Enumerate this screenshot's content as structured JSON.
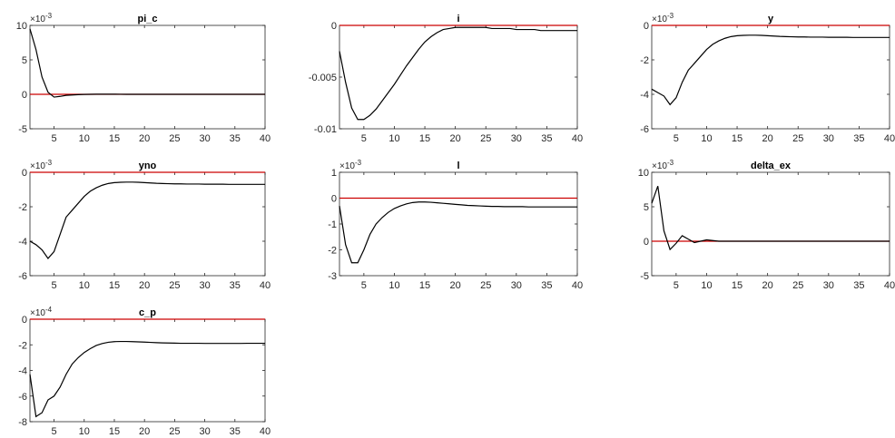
{
  "colors": {
    "response": "#000000",
    "zero_line": "#cc0000",
    "axes": "#262626"
  },
  "chart_data": [
    {
      "type": "line",
      "title": "pi_c",
      "exponent_base": "×10",
      "exponent_power": "-3",
      "x": [
        1,
        2,
        3,
        4,
        5,
        6,
        7,
        8,
        9,
        10,
        11,
        12,
        13,
        14,
        15,
        16,
        17,
        18,
        19,
        20,
        21,
        22,
        23,
        24,
        25,
        26,
        27,
        28,
        29,
        30,
        31,
        32,
        33,
        34,
        35,
        36,
        37,
        38,
        39,
        40
      ],
      "values": [
        9.5,
        6.5,
        2.5,
        0.3,
        -0.4,
        -0.3,
        -0.15,
        -0.1,
        -0.05,
        -0.02,
        0,
        0.02,
        0.02,
        0.02,
        0.02,
        0.01,
        0,
        0,
        0,
        0,
        0,
        0,
        0,
        0,
        0,
        0,
        0,
        0,
        0,
        0,
        0,
        0,
        0,
        0,
        0,
        0,
        0,
        0,
        0,
        0
      ],
      "xlim": [
        1,
        40
      ],
      "ylim": [
        -5,
        10
      ],
      "xticks": [
        5,
        10,
        15,
        20,
        25,
        30,
        35,
        40
      ],
      "xtick_labels": [
        "5",
        "10",
        "15",
        "20",
        "25",
        "30",
        "35",
        "40"
      ],
      "yticks": [
        -5,
        0,
        5,
        10
      ],
      "ytick_labels": [
        "-5",
        "0",
        "5",
        "10"
      ]
    },
    {
      "type": "line",
      "title": "i",
      "exponent_base": "",
      "exponent_power": "",
      "x": [
        1,
        2,
        3,
        4,
        5,
        6,
        7,
        8,
        9,
        10,
        11,
        12,
        13,
        14,
        15,
        16,
        17,
        18,
        19,
        20,
        21,
        22,
        23,
        24,
        25,
        26,
        27,
        28,
        29,
        30,
        31,
        32,
        33,
        34,
        35,
        36,
        37,
        38,
        39,
        40
      ],
      "values": [
        -0.0025,
        -0.0055,
        -0.008,
        -0.0091,
        -0.0091,
        -0.0087,
        -0.0081,
        -0.0073,
        -0.0065,
        -0.0057,
        -0.0048,
        -0.0039,
        -0.0031,
        -0.0023,
        -0.0016,
        -0.0011,
        -0.0007,
        -0.0004,
        -0.0003,
        -0.0002,
        -0.0002,
        -0.0002,
        -0.0002,
        -0.0002,
        -0.0002,
        -0.0003,
        -0.0003,
        -0.0003,
        -0.0003,
        -0.0004,
        -0.0004,
        -0.0004,
        -0.0004,
        -0.0005,
        -0.0005,
        -0.0005,
        -0.0005,
        -0.0005,
        -0.0005,
        -0.0005
      ],
      "xlim": [
        1,
        40
      ],
      "ylim": [
        -0.01,
        0
      ],
      "xticks": [
        5,
        10,
        15,
        20,
        25,
        30,
        35,
        40
      ],
      "xtick_labels": [
        "5",
        "10",
        "15",
        "20",
        "25",
        "30",
        "35",
        "40"
      ],
      "yticks": [
        -0.01,
        -0.005,
        0
      ],
      "ytick_labels": [
        "-0.01",
        "-0.005",
        "0"
      ]
    },
    {
      "type": "line",
      "title": "y",
      "exponent_base": "×10",
      "exponent_power": "-3",
      "x": [
        1,
        2,
        3,
        4,
        5,
        6,
        7,
        8,
        9,
        10,
        11,
        12,
        13,
        14,
        15,
        16,
        17,
        18,
        19,
        20,
        21,
        22,
        23,
        24,
        25,
        26,
        27,
        28,
        29,
        30,
        31,
        32,
        33,
        34,
        35,
        36,
        37,
        38,
        39,
        40
      ],
      "values": [
        -3.7,
        -3.9,
        -4.1,
        -4.6,
        -4.2,
        -3.3,
        -2.6,
        -2.2,
        -1.8,
        -1.4,
        -1.1,
        -0.9,
        -0.75,
        -0.65,
        -0.6,
        -0.58,
        -0.57,
        -0.57,
        -0.58,
        -0.6,
        -0.62,
        -0.64,
        -0.65,
        -0.66,
        -0.67,
        -0.67,
        -0.68,
        -0.68,
        -0.68,
        -0.69,
        -0.69,
        -0.69,
        -0.69,
        -0.7,
        -0.7,
        -0.7,
        -0.7,
        -0.7,
        -0.7,
        -0.7
      ],
      "xlim": [
        1,
        40
      ],
      "ylim": [
        -6,
        0
      ],
      "xticks": [
        5,
        10,
        15,
        20,
        25,
        30,
        35,
        40
      ],
      "xtick_labels": [
        "5",
        "10",
        "15",
        "20",
        "25",
        "30",
        "35",
        "40"
      ],
      "yticks": [
        -6,
        -4,
        -2,
        0
      ],
      "ytick_labels": [
        "-6",
        "-4",
        "-2",
        "0"
      ]
    },
    {
      "type": "line",
      "title": "yno",
      "exponent_base": "×10",
      "exponent_power": "-3",
      "x": [
        1,
        2,
        3,
        4,
        5,
        6,
        7,
        8,
        9,
        10,
        11,
        12,
        13,
        14,
        15,
        16,
        17,
        18,
        19,
        20,
        21,
        22,
        23,
        24,
        25,
        26,
        27,
        28,
        29,
        30,
        31,
        32,
        33,
        34,
        35,
        36,
        37,
        38,
        39,
        40
      ],
      "values": [
        -4.0,
        -4.2,
        -4.5,
        -5.0,
        -4.6,
        -3.6,
        -2.6,
        -2.2,
        -1.8,
        -1.4,
        -1.1,
        -0.9,
        -0.75,
        -0.65,
        -0.6,
        -0.58,
        -0.57,
        -0.57,
        -0.58,
        -0.6,
        -0.62,
        -0.64,
        -0.65,
        -0.66,
        -0.67,
        -0.67,
        -0.68,
        -0.68,
        -0.68,
        -0.69,
        -0.69,
        -0.69,
        -0.69,
        -0.7,
        -0.7,
        -0.7,
        -0.7,
        -0.7,
        -0.7,
        -0.7
      ],
      "xlim": [
        1,
        40
      ],
      "ylim": [
        -6,
        0
      ],
      "xticks": [
        5,
        10,
        15,
        20,
        25,
        30,
        35,
        40
      ],
      "xtick_labels": [
        "5",
        "10",
        "15",
        "20",
        "25",
        "30",
        "35",
        "40"
      ],
      "yticks": [
        -6,
        -4,
        -2,
        0
      ],
      "ytick_labels": [
        "-6",
        "-4",
        "-2",
        "0"
      ]
    },
    {
      "type": "line",
      "title": "l",
      "exponent_base": "×10",
      "exponent_power": "-3",
      "x": [
        1,
        2,
        3,
        4,
        5,
        6,
        7,
        8,
        9,
        10,
        11,
        12,
        13,
        14,
        15,
        16,
        17,
        18,
        19,
        20,
        21,
        22,
        23,
        24,
        25,
        26,
        27,
        28,
        29,
        30,
        31,
        32,
        33,
        34,
        35,
        36,
        37,
        38,
        39,
        40
      ],
      "values": [
        -0.3,
        -1.8,
        -2.5,
        -2.5,
        -2.0,
        -1.4,
        -1.0,
        -0.75,
        -0.55,
        -0.4,
        -0.3,
        -0.22,
        -0.17,
        -0.15,
        -0.15,
        -0.16,
        -0.18,
        -0.2,
        -0.22,
        -0.24,
        -0.26,
        -0.28,
        -0.29,
        -0.3,
        -0.31,
        -0.32,
        -0.32,
        -0.33,
        -0.33,
        -0.33,
        -0.33,
        -0.34,
        -0.34,
        -0.34,
        -0.34,
        -0.34,
        -0.34,
        -0.34,
        -0.34,
        -0.34
      ],
      "xlim": [
        1,
        40
      ],
      "ylim": [
        -3,
        1
      ],
      "xticks": [
        5,
        10,
        15,
        20,
        25,
        30,
        35,
        40
      ],
      "xtick_labels": [
        "5",
        "10",
        "15",
        "20",
        "25",
        "30",
        "35",
        "40"
      ],
      "yticks": [
        -3,
        -2,
        -1,
        0,
        1
      ],
      "ytick_labels": [
        "-3",
        "-2",
        "-1",
        "0",
        "1"
      ]
    },
    {
      "type": "line",
      "title": "delta_ex",
      "exponent_base": "×10",
      "exponent_power": "-3",
      "x": [
        1,
        2,
        3,
        4,
        5,
        6,
        7,
        8,
        9,
        10,
        11,
        12,
        13,
        14,
        15,
        16,
        17,
        18,
        19,
        20,
        21,
        22,
        23,
        24,
        25,
        26,
        27,
        28,
        29,
        30,
        31,
        32,
        33,
        34,
        35,
        36,
        37,
        38,
        39,
        40
      ],
      "values": [
        5.5,
        8.0,
        1.5,
        -1.2,
        -0.3,
        0.8,
        0.3,
        -0.2,
        0,
        0.2,
        0.1,
        0,
        0,
        0,
        0,
        0,
        0,
        0,
        0,
        0,
        0,
        0,
        0,
        0,
        0,
        0,
        0,
        0,
        0,
        0,
        0,
        0,
        0,
        0,
        0,
        0,
        0,
        0,
        0,
        0
      ],
      "xlim": [
        1,
        40
      ],
      "ylim": [
        -5,
        10
      ],
      "xticks": [
        5,
        10,
        15,
        20,
        25,
        30,
        35,
        40
      ],
      "xtick_labels": [
        "5",
        "10",
        "15",
        "20",
        "25",
        "30",
        "35",
        "40"
      ],
      "yticks": [
        -5,
        0,
        5,
        10
      ],
      "ytick_labels": [
        "-5",
        "0",
        "5",
        "10"
      ]
    },
    {
      "type": "line",
      "title": "c_p",
      "exponent_base": "×10",
      "exponent_power": "-4",
      "x": [
        1,
        2,
        3,
        4,
        5,
        6,
        7,
        8,
        9,
        10,
        11,
        12,
        13,
        14,
        15,
        16,
        17,
        18,
        19,
        20,
        21,
        22,
        23,
        24,
        25,
        26,
        27,
        28,
        29,
        30,
        31,
        32,
        33,
        34,
        35,
        36,
        37,
        38,
        39,
        40
      ],
      "values": [
        -4.3,
        -7.6,
        -7.3,
        -6.3,
        -6.0,
        -5.3,
        -4.3,
        -3.5,
        -3.0,
        -2.6,
        -2.3,
        -2.05,
        -1.9,
        -1.8,
        -1.75,
        -1.74,
        -1.74,
        -1.75,
        -1.77,
        -1.79,
        -1.81,
        -1.83,
        -1.85,
        -1.86,
        -1.87,
        -1.88,
        -1.88,
        -1.88,
        -1.88,
        -1.89,
        -1.89,
        -1.89,
        -1.89,
        -1.89,
        -1.89,
        -1.89,
        -1.88,
        -1.88,
        -1.88,
        -1.88
      ],
      "xlim": [
        1,
        40
      ],
      "ylim": [
        -8,
        0
      ],
      "xticks": [
        5,
        10,
        15,
        20,
        25,
        30,
        35,
        40
      ],
      "xtick_labels": [
        "5",
        "10",
        "15",
        "20",
        "25",
        "30",
        "35",
        "40"
      ],
      "yticks": [
        -8,
        -6,
        -4,
        -2,
        0
      ],
      "ytick_labels": [
        "-8",
        "-6",
        "-4",
        "-2",
        "0"
      ]
    }
  ]
}
